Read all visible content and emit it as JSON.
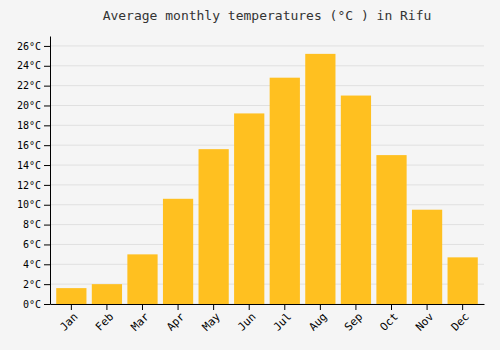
{
  "chart_data": {
    "type": "bar",
    "title": "Average monthly temperatures (°C ) in Rifu",
    "categories": [
      "Jan",
      "Feb",
      "Mar",
      "Apr",
      "May",
      "Jun",
      "Jul",
      "Aug",
      "Sep",
      "Oct",
      "Nov",
      "Dec"
    ],
    "values": [
      1.6,
      2.0,
      5.0,
      10.6,
      15.6,
      19.2,
      22.8,
      25.2,
      21.0,
      15.0,
      9.5,
      4.7
    ],
    "color": "#FFC020",
    "ylim": [
      0,
      27
    ],
    "yticks": [
      {
        "value": 0,
        "label": "0°C"
      },
      {
        "value": 2,
        "label": "2°C"
      },
      {
        "value": 4,
        "label": "4°C"
      },
      {
        "value": 6,
        "label": "6°C"
      },
      {
        "value": 8,
        "label": "8°C"
      },
      {
        "value": 10,
        "label": "10°C"
      },
      {
        "value": 12,
        "label": "12°C"
      },
      {
        "value": 14,
        "label": "14°C"
      },
      {
        "value": 16,
        "label": "16°C"
      },
      {
        "value": 18,
        "label": "18°C"
      },
      {
        "value": 20,
        "label": "20°C"
      },
      {
        "value": 22,
        "label": "22°C"
      },
      {
        "value": 24,
        "label": "24°C"
      },
      {
        "value": 26,
        "label": "26°C"
      }
    ],
    "grid": true
  }
}
